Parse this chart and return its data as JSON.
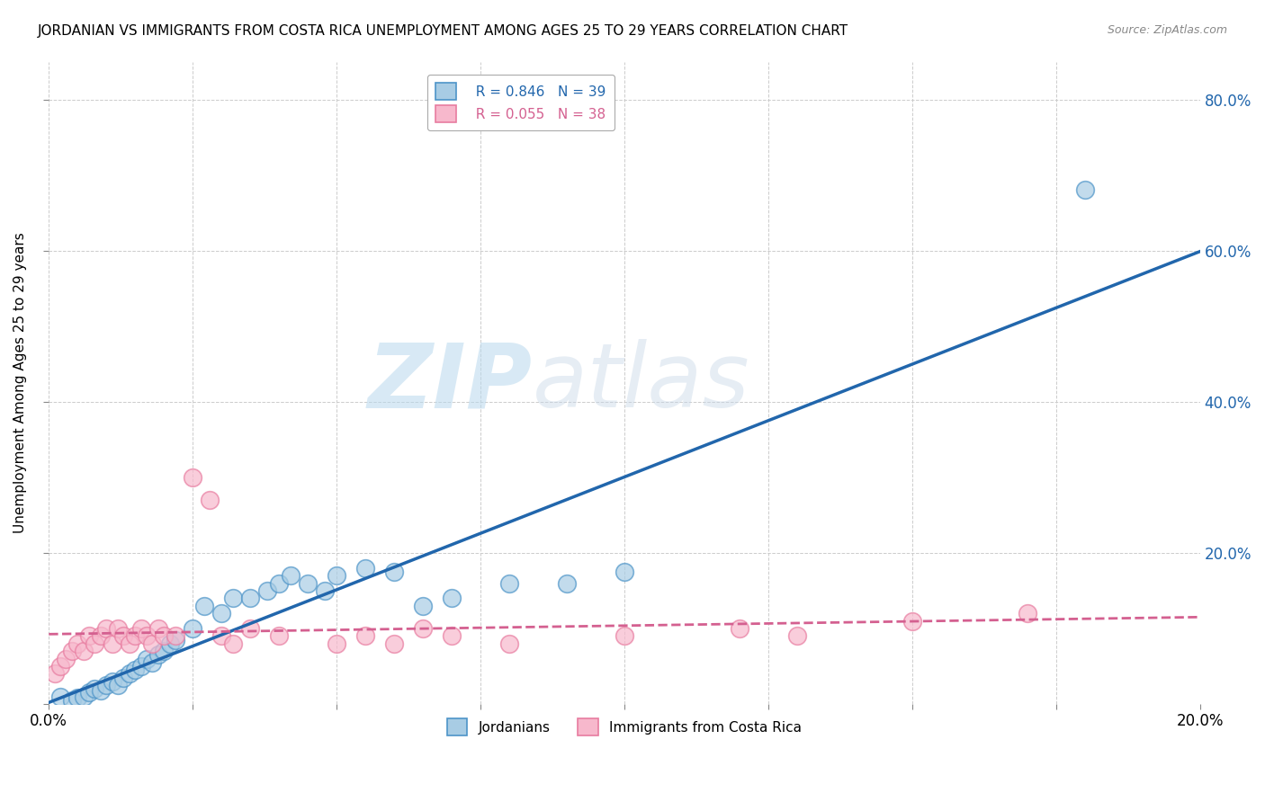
{
  "title": "JORDANIAN VS IMMIGRANTS FROM COSTA RICA UNEMPLOYMENT AMONG AGES 25 TO 29 YEARS CORRELATION CHART",
  "source": "Source: ZipAtlas.com",
  "ylabel": "Unemployment Among Ages 25 to 29 years",
  "x_min": 0.0,
  "x_max": 0.2,
  "y_min": 0.0,
  "y_max": 0.85,
  "legend_r1": "R = 0.846",
  "legend_n1": "N = 39",
  "legend_r2": "R = 0.055",
  "legend_n2": "N = 38",
  "label_jordanians": "Jordanians",
  "label_immigrants": "Immigrants from Costa Rica",
  "blue_color": "#a8cce4",
  "pink_color": "#f7b8cc",
  "blue_edge_color": "#4d94c8",
  "pink_edge_color": "#e87ca0",
  "blue_line_color": "#2166ac",
  "pink_line_color": "#d46090",
  "watermark_zip": "ZIP",
  "watermark_atlas": "atlas",
  "jordanians_x": [
    0.002,
    0.004,
    0.005,
    0.006,
    0.007,
    0.008,
    0.009,
    0.01,
    0.011,
    0.012,
    0.013,
    0.014,
    0.015,
    0.016,
    0.017,
    0.018,
    0.019,
    0.02,
    0.021,
    0.022,
    0.025,
    0.027,
    0.03,
    0.032,
    0.035,
    0.038,
    0.04,
    0.042,
    0.045,
    0.048,
    0.05,
    0.055,
    0.06,
    0.065,
    0.07,
    0.08,
    0.09,
    0.1,
    0.18
  ],
  "jordanians_y": [
    0.01,
    0.005,
    0.008,
    0.01,
    0.015,
    0.02,
    0.018,
    0.025,
    0.03,
    0.025,
    0.035,
    0.04,
    0.045,
    0.05,
    0.06,
    0.055,
    0.065,
    0.07,
    0.08,
    0.085,
    0.1,
    0.13,
    0.12,
    0.14,
    0.14,
    0.15,
    0.16,
    0.17,
    0.16,
    0.15,
    0.17,
    0.18,
    0.175,
    0.13,
    0.14,
    0.16,
    0.16,
    0.175,
    0.68
  ],
  "immigrants_x": [
    0.001,
    0.002,
    0.003,
    0.004,
    0.005,
    0.006,
    0.007,
    0.008,
    0.009,
    0.01,
    0.011,
    0.012,
    0.013,
    0.014,
    0.015,
    0.016,
    0.017,
    0.018,
    0.019,
    0.02,
    0.022,
    0.025,
    0.028,
    0.03,
    0.032,
    0.035,
    0.04,
    0.05,
    0.055,
    0.06,
    0.065,
    0.07,
    0.08,
    0.1,
    0.12,
    0.13,
    0.15,
    0.17
  ],
  "immigrants_y": [
    0.04,
    0.05,
    0.06,
    0.07,
    0.08,
    0.07,
    0.09,
    0.08,
    0.09,
    0.1,
    0.08,
    0.1,
    0.09,
    0.08,
    0.09,
    0.1,
    0.09,
    0.08,
    0.1,
    0.09,
    0.09,
    0.3,
    0.27,
    0.09,
    0.08,
    0.1,
    0.09,
    0.08,
    0.09,
    0.08,
    0.1,
    0.09,
    0.08,
    0.09,
    0.1,
    0.09,
    0.11,
    0.12
  ]
}
